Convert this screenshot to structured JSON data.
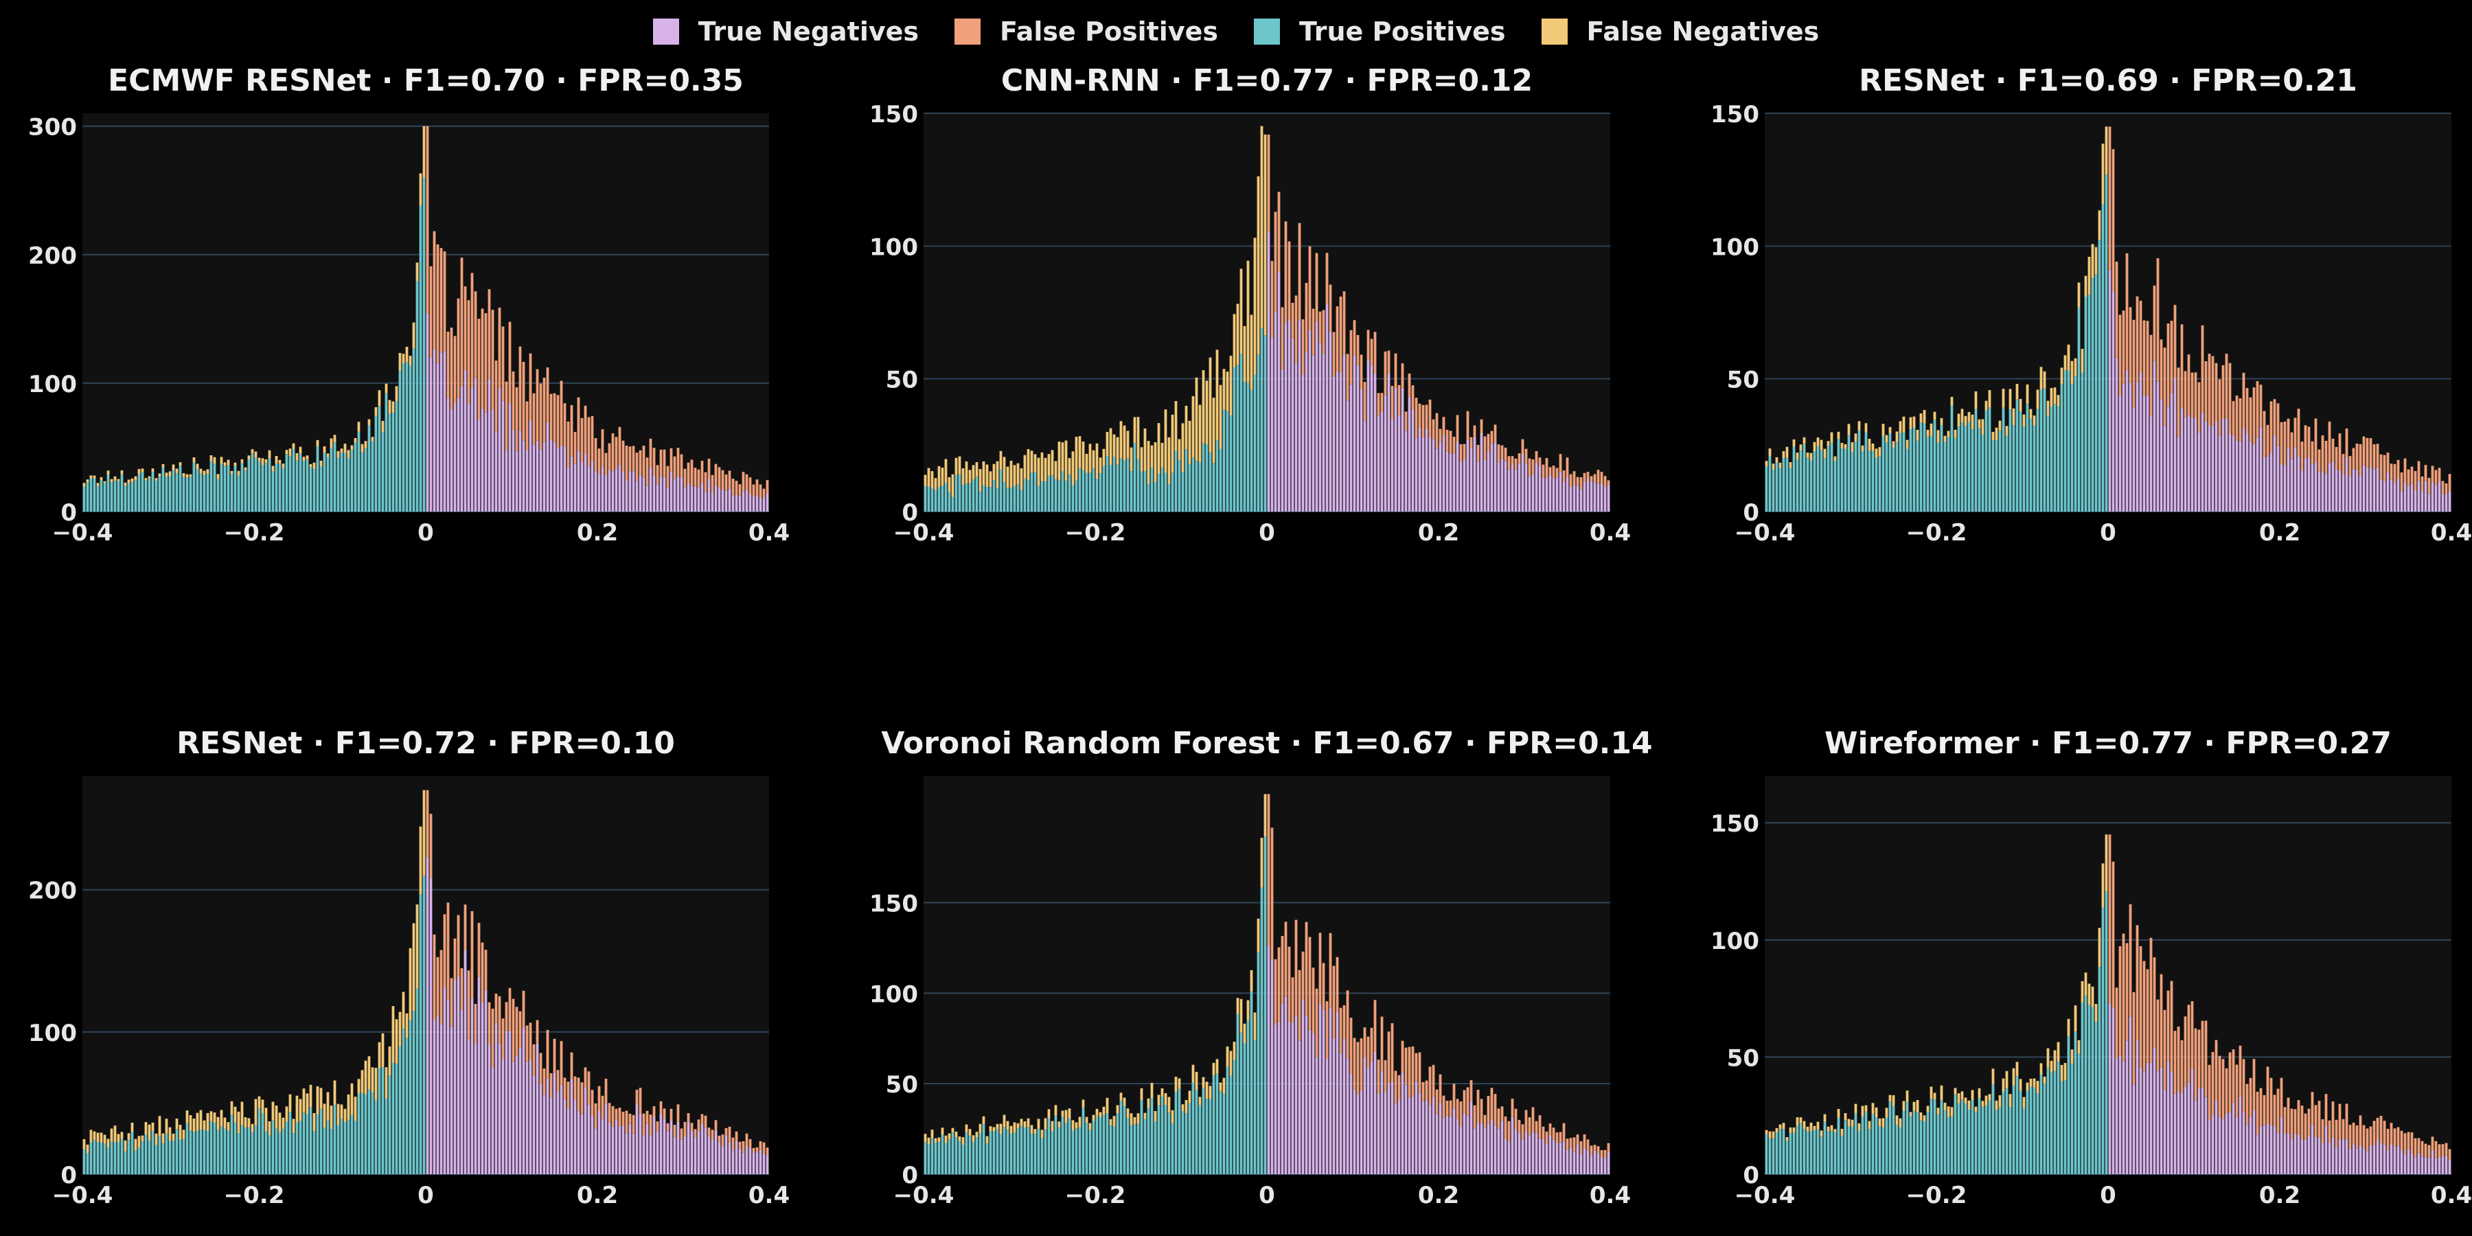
{
  "legend": [
    {
      "label": "True Negatives",
      "color": "#d7b3ea"
    },
    {
      "label": "False Positives",
      "color": "#f0a07a"
    },
    {
      "label": "True Positives",
      "color": "#6cc6cc"
    },
    {
      "label": "False Negatives",
      "color": "#f1c978"
    }
  ],
  "style": {
    "background": "#000000",
    "plot_background": "#111111",
    "grid": "#2f4459"
  },
  "chart_data": [
    {
      "type": "bar",
      "stacked": true,
      "title": "ECMWF RESNet · F1=0.70 · FPR=0.35",
      "xlim": [
        -0.4,
        0.4
      ],
      "xticks": [
        -0.4,
        -0.2,
        0,
        0.2,
        0.4
      ],
      "xtick_labels": [
        "−0.4",
        "−0.2",
        "0",
        "0.2",
        "0.4"
      ],
      "ylim": [
        0,
        310
      ],
      "yticks": [
        0,
        100,
        200,
        300
      ],
      "ytick_labels": [
        "0",
        "100",
        "200",
        "300"
      ],
      "grid": true,
      "series_order": [
        "True Positives",
        "False Negatives",
        "True Negatives",
        "False Positives"
      ],
      "profile": {
        "x": [
          -0.4,
          -0.2,
          -0.1,
          -0.05,
          -0.01,
          0,
          0.01,
          0.05,
          0.1,
          0.2,
          0.4
        ],
        "total": [
          25,
          40,
          50,
          80,
          160,
          300,
          180,
          165,
          120,
          60,
          20
        ],
        "tn_share_right": 0.55,
        "fn_share_left": 0.1
      }
    },
    {
      "type": "bar",
      "stacked": true,
      "title": "CNN-RNN · F1=0.77 · FPR=0.12",
      "xlim": [
        -0.4,
        0.4
      ],
      "xticks": [
        -0.4,
        -0.2,
        0,
        0.2,
        0.4
      ],
      "xtick_labels": [
        "−0.4",
        "−0.2",
        "0",
        "0.2",
        "0.4"
      ],
      "ylim": [
        0,
        150
      ],
      "yticks": [
        0,
        50,
        100,
        150
      ],
      "ytick_labels": [
        "0",
        "50",
        "100",
        "150"
      ],
      "grid": true,
      "series_order": [
        "True Positives",
        "False Negatives",
        "True Negatives",
        "False Positives"
      ],
      "profile": {
        "x": [
          -0.4,
          -0.2,
          -0.1,
          -0.05,
          -0.01,
          0,
          0.01,
          0.05,
          0.1,
          0.2,
          0.4
        ],
        "total": [
          15,
          25,
          35,
          55,
          105,
          142,
          100,
          90,
          65,
          35,
          12
        ],
        "tn_share_right": 0.75,
        "fn_share_left": 0.45
      }
    },
    {
      "type": "bar",
      "stacked": true,
      "title": "RESNet · F1=0.69 · FPR=0.21",
      "xlim": [
        -0.4,
        0.4
      ],
      "xticks": [
        -0.4,
        -0.2,
        0,
        0.2,
        0.4
      ],
      "xtick_labels": [
        "−0.4",
        "−0.2",
        "0",
        "0.2",
        "0.4"
      ],
      "ylim": [
        0,
        150
      ],
      "yticks": [
        0,
        50,
        100,
        150
      ],
      "ytick_labels": [
        "0",
        "50",
        "100",
        "150"
      ],
      "grid": true,
      "series_order": [
        "True Positives",
        "False Negatives",
        "True Negatives",
        "False Positives"
      ],
      "profile": {
        "x": [
          -0.4,
          -0.2,
          -0.1,
          -0.05,
          -0.01,
          0,
          0.01,
          0.05,
          0.1,
          0.2,
          0.4
        ],
        "total": [
          20,
          35,
          40,
          55,
          95,
          145,
          90,
          85,
          60,
          35,
          12
        ],
        "tn_share_right": 0.6,
        "fn_share_left": 0.12
      }
    },
    {
      "type": "bar",
      "stacked": true,
      "title": "RESNet · F1=0.72 · FPR=0.10",
      "xlim": [
        -0.4,
        0.4
      ],
      "xticks": [
        -0.4,
        -0.2,
        0,
        0.2,
        0.4
      ],
      "xtick_labels": [
        "−0.4",
        "−0.2",
        "0",
        "0.2",
        "0.4"
      ],
      "ylim": [
        0,
        280
      ],
      "yticks": [
        0,
        100,
        200
      ],
      "ytick_labels": [
        "0",
        "100",
        "200"
      ],
      "grid": true,
      "series_order": [
        "True Positives",
        "False Negatives",
        "True Negatives",
        "False Positives"
      ],
      "profile": {
        "x": [
          -0.4,
          -0.2,
          -0.1,
          -0.05,
          -0.01,
          0,
          0.01,
          0.05,
          0.1,
          0.2,
          0.4
        ],
        "total": [
          25,
          45,
          55,
          85,
          160,
          270,
          175,
          160,
          115,
          60,
          20
        ],
        "tn_share_right": 0.75,
        "fn_share_left": 0.25
      }
    },
    {
      "type": "bar",
      "stacked": true,
      "title": "Voronoi Random Forest · F1=0.67 · FPR=0.14",
      "xlim": [
        -0.4,
        0.4
      ],
      "xticks": [
        -0.4,
        -0.2,
        0,
        0.2,
        0.4
      ],
      "xtick_labels": [
        "−0.4",
        "−0.2",
        "0",
        "0.2",
        "0.4"
      ],
      "ylim": [
        0,
        220
      ],
      "yticks": [
        0,
        50,
        100,
        150
      ],
      "ytick_labels": [
        "0",
        "50",
        "100",
        "150"
      ],
      "grid": true,
      "series_order": [
        "True Positives",
        "False Negatives",
        "True Negatives",
        "False Positives"
      ],
      "profile": {
        "x": [
          -0.4,
          -0.2,
          -0.1,
          -0.05,
          -0.01,
          0,
          0.01,
          0.05,
          0.1,
          0.2,
          0.4
        ],
        "total": [
          22,
          35,
          45,
          65,
          120,
          210,
          135,
          130,
          90,
          50,
          15
        ],
        "tn_share_right": 0.7,
        "fn_share_left": 0.15
      }
    },
    {
      "type": "bar",
      "stacked": true,
      "title": "Wireformer · F1=0.77 · FPR=0.27",
      "xlim": [
        -0.4,
        0.4
      ],
      "xticks": [
        -0.4,
        -0.2,
        0,
        0.2,
        0.4
      ],
      "xtick_labels": [
        "−0.4",
        "−0.2",
        "0",
        "0.2",
        "0.4"
      ],
      "ylim": [
        0,
        170
      ],
      "yticks": [
        0,
        50,
        100,
        150
      ],
      "ytick_labels": [
        "0",
        "50",
        "100",
        "150"
      ],
      "grid": true,
      "series_order": [
        "True Positives",
        "False Negatives",
        "True Negatives",
        "False Positives"
      ],
      "profile": {
        "x": [
          -0.4,
          -0.2,
          -0.1,
          -0.05,
          -0.01,
          0,
          0.01,
          0.05,
          0.1,
          0.2,
          0.4
        ],
        "total": [
          18,
          32,
          40,
          52,
          90,
          145,
          100,
          90,
          60,
          35,
          12
        ],
        "tn_share_right": 0.55,
        "fn_share_left": 0.12
      }
    }
  ]
}
